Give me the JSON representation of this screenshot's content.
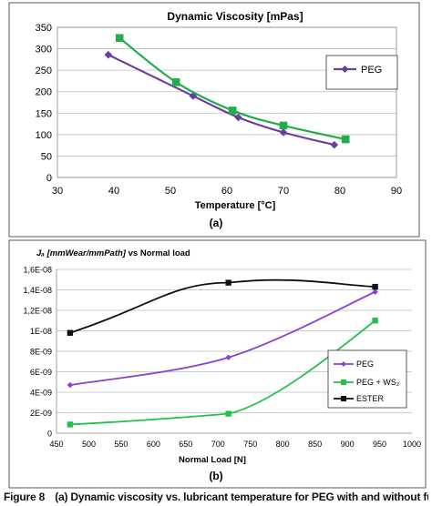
{
  "chart_data": [
    {
      "type": "line",
      "label": "(a)",
      "title": "Dynamic Viscosity [mPas]",
      "xlabel": "Temperature [°C]",
      "ylabel": "",
      "xlim": [
        30,
        90
      ],
      "ylim": [
        0,
        350
      ],
      "xticks": [
        30,
        40,
        50,
        60,
        70,
        80,
        90
      ],
      "yticks": [
        0,
        50,
        100,
        150,
        200,
        250,
        300,
        350
      ],
      "grid": "horizontal",
      "legend": "right",
      "series": [
        {
          "name": "PEG",
          "color": "#6a3ea1",
          "marker": "diamond",
          "x": [
            39,
            54,
            62,
            70,
            79
          ],
          "y": [
            286,
            190,
            140,
            105,
            76
          ]
        },
        {
          "name": "",
          "color": "#1fae4a",
          "marker": "square",
          "x": [
            41,
            51,
            61,
            70,
            81
          ],
          "y": [
            325,
            222,
            156,
            121,
            89
          ]
        }
      ]
    },
    {
      "type": "line",
      "label": "(b)",
      "title_italic": "Jₐ [mmWear/mmPath]",
      "title_rest": " vs Normal load",
      "xlabel": "Normal Load [N]",
      "ylabel": "",
      "xlim": [
        450,
        1000
      ],
      "ylim": [
        0,
        1.6e-08
      ],
      "xticks": [
        450,
        500,
        550,
        600,
        650,
        700,
        750,
        800,
        850,
        900,
        950,
        1000
      ],
      "yticks": [
        "0",
        "2E-09",
        "4E-09",
        "6E-09",
        "8E-09",
        "1E-08",
        "1,2E-08",
        "1,4E-08",
        "1,6E-08"
      ],
      "grid": "horizontal",
      "legend": "lower-right",
      "series": [
        {
          "name": "PEG",
          "color": "#8c3fd6",
          "marker": "diamond",
          "x": [
            471,
            716,
            943
          ],
          "y": [
            4.7e-09,
            7.4e-09,
            1.38e-08
          ]
        },
        {
          "name": "PEG + WS₂",
          "color": "#21c24a",
          "marker": "square",
          "x": [
            471,
            716,
            943
          ],
          "y": [
            8.5e-10,
            1.9e-09,
            1.1e-08
          ]
        },
        {
          "name": "ESTER",
          "color": "#111111",
          "marker": "square",
          "x": [
            471,
            716,
            943
          ],
          "y": [
            9.8e-09,
            1.47e-08,
            1.43e-08
          ]
        }
      ]
    }
  ],
  "caption": {
    "figure": "Figure 8",
    "text": "(a) Dynamic viscosity vs. lubricant temperature for PEG with and without fullerene"
  }
}
